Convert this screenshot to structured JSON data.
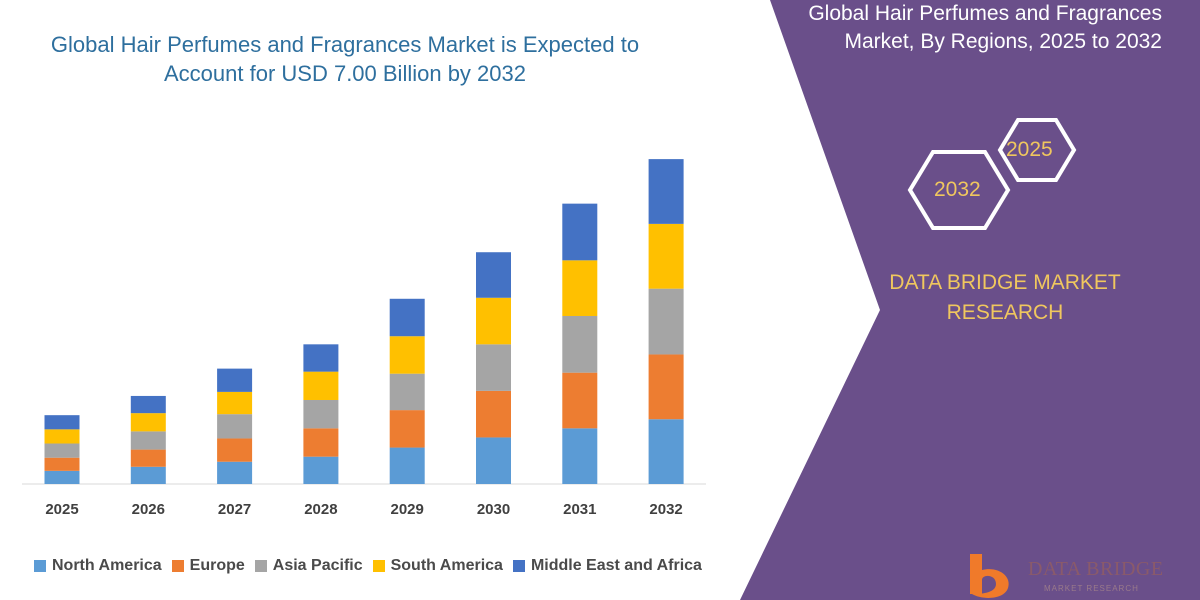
{
  "chart_data": {
    "type": "bar",
    "stacked": true,
    "title": "Global Hair Perfumes and Fragrances Market is Expected to Account for USD 7.00 Billion by 2032",
    "title_lines": [
      "Global Hair Perfumes and Fragrances Market is Expected to",
      "Account for USD 7.00 Billion by 2032"
    ],
    "categories": [
      "2025",
      "2026",
      "2027",
      "2028",
      "2029",
      "2030",
      "2031",
      "2032"
    ],
    "series": [
      {
        "name": "North America",
        "color": "#5b9bd5",
        "values": [
          13,
          17,
          22,
          27,
          36,
          46,
          55,
          64
        ]
      },
      {
        "name": "Europe",
        "color": "#ed7d31",
        "values": [
          13,
          17,
          23,
          28,
          37,
          46,
          55,
          64
        ]
      },
      {
        "name": "Asia Pacific",
        "color": "#a5a5a5",
        "values": [
          14,
          18,
          24,
          28,
          36,
          46,
          56,
          65
        ]
      },
      {
        "name": "South America",
        "color": "#ffc000",
        "values": [
          14,
          18,
          22,
          28,
          37,
          46,
          55,
          64
        ]
      },
      {
        "name": "Middle East and Africa",
        "color": "#4472c4",
        "values": [
          14,
          17,
          23,
          27,
          37,
          45,
          56,
          64
        ]
      }
    ],
    "ylim": [
      0,
      330
    ],
    "legend_position": "bottom",
    "grid": false
  },
  "panel": {
    "title_lines": [
      "Global Hair Perfumes and Fragrances",
      "Market, By Regions, 2025 to 2032"
    ],
    "hex_front": "2032",
    "hex_back": "2025",
    "brand_lines": [
      "DATA BRIDGE MARKET",
      "RESEARCH"
    ],
    "background_color": "#6a4f8a",
    "accent_color": "#f0c75e"
  },
  "logo": {
    "name": "DATA BRIDGE",
    "tagline": "MARKET RESEARCH"
  }
}
